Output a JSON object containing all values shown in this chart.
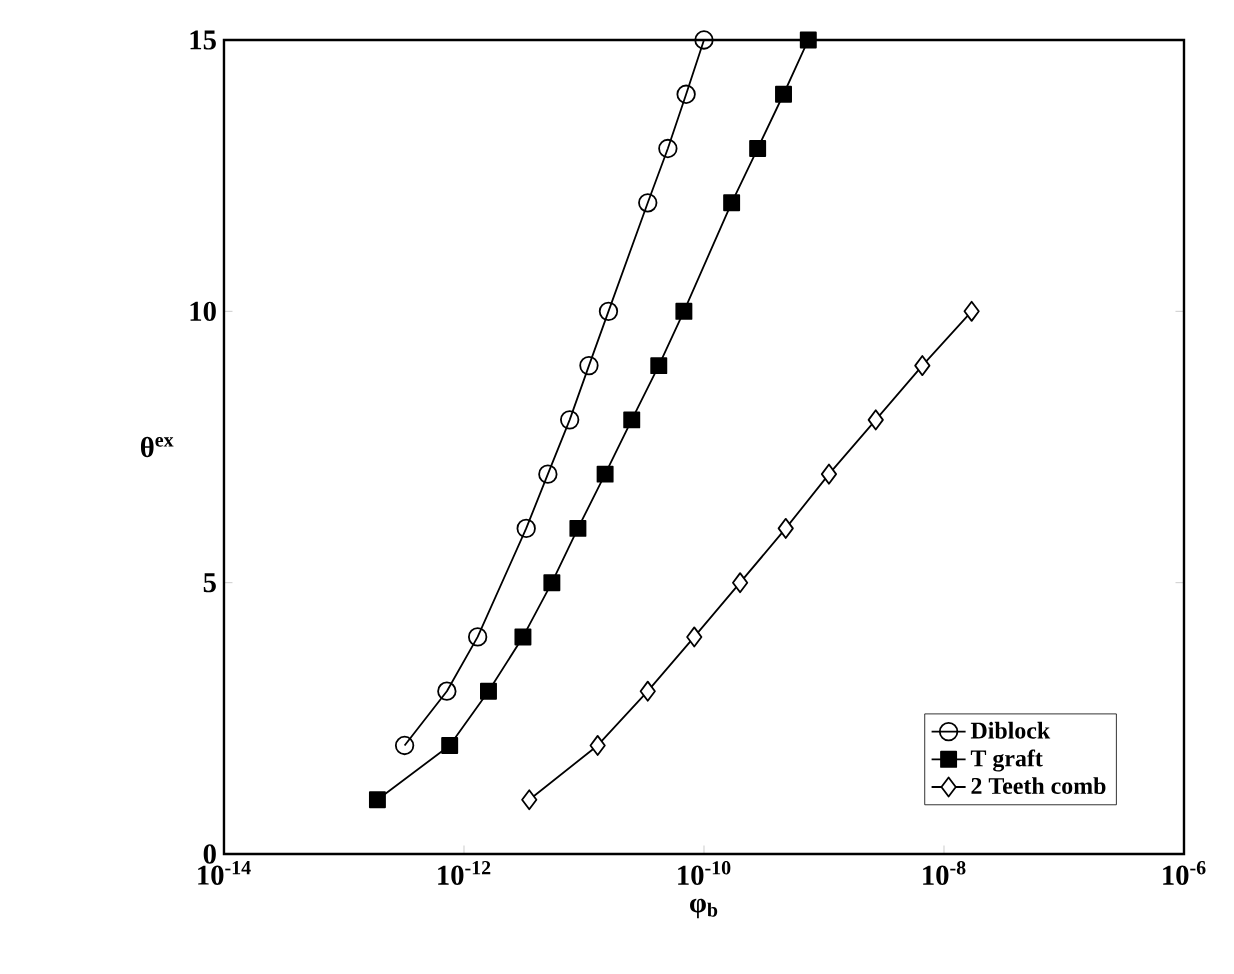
{
  "chart_data": {
    "type": "line",
    "xlabel": "φ$_{b}$",
    "ylabel": "θ$^{ex}$",
    "log": "x",
    "xlim": [
      1e-14,
      1e-06
    ],
    "ylim": [
      0,
      15
    ],
    "xticks": [
      {
        "value": 1e-14,
        "label": "10$^{-14}$"
      },
      {
        "value": 1e-12,
        "label": "10$^{-12}$"
      },
      {
        "value": 1e-10,
        "label": "10$^{-10}$"
      },
      {
        "value": 1e-08,
        "label": "10$^{-8}$"
      },
      {
        "value": 1e-06,
        "label": "10$^{-6}$"
      }
    ],
    "yticks": [
      0,
      5,
      10,
      15
    ],
    "grid": false,
    "legend": "bottom right",
    "line_style": "solid",
    "series": [
      {
        "name": "Diblock",
        "color": "#000000",
        "marker": "circle",
        "x": [
          3.2e-13,
          7.2e-13,
          1.3e-12,
          3.3e-12,
          5e-12,
          7.6e-12,
          1.1e-11,
          1.6e-11,
          3.4e-11,
          5e-11,
          7.1e-11,
          1e-10
        ],
        "values": [
          2,
          3,
          4,
          6,
          7,
          8,
          9,
          10,
          12,
          13,
          14,
          15
        ]
      },
      {
        "name": "T graft",
        "color": "#000000",
        "marker": "square",
        "x": [
          1.9e-13,
          7.6e-13,
          1.6e-12,
          3.1e-12,
          5.4e-12,
          8.9e-12,
          1.5e-11,
          2.5e-11,
          4.2e-11,
          6.8e-11,
          1.7e-10,
          2.8e-10,
          4.6e-10,
          7.4e-10
        ],
        "values": [
          1,
          2,
          3,
          4,
          5,
          6,
          7,
          8,
          9,
          10,
          12,
          13,
          14,
          15
        ]
      },
      {
        "name": "2 Teeth comb",
        "color": "#000000",
        "marker": "diamond",
        "x": [
          3.5e-12,
          1.3e-11,
          3.4e-11,
          8.3e-11,
          2e-10,
          4.8e-10,
          1.1e-09,
          2.7e-09,
          6.6e-09,
          1.7e-08
        ],
        "values": [
          1,
          2,
          3,
          4,
          5,
          6,
          7,
          8,
          9,
          10
        ]
      }
    ]
  }
}
